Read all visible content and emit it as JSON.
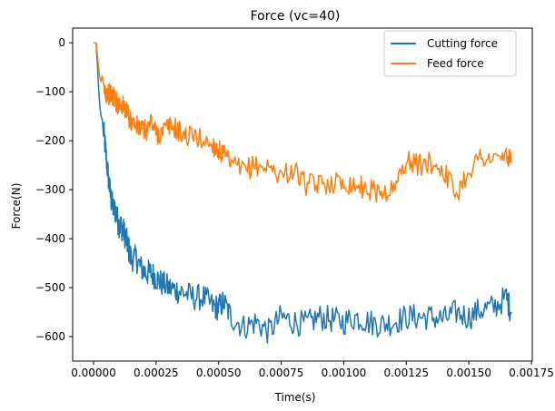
{
  "chart_data": {
    "type": "line",
    "title": "Force (vc=40)",
    "xlabel": "Time(s)",
    "ylabel": "Force(N)",
    "xlim": [
      -8.35e-05,
      0.0017535
    ],
    "ylim": [
      -650,
      30
    ],
    "xticks": [
      {
        "value": 0.0,
        "label": "0.00000"
      },
      {
        "value": 0.00025,
        "label": "0.00025"
      },
      {
        "value": 0.0005,
        "label": "0.00050"
      },
      {
        "value": 0.00075,
        "label": "0.00075"
      },
      {
        "value": 0.001,
        "label": "0.00100"
      },
      {
        "value": 0.00125,
        "label": "0.00125"
      },
      {
        "value": 0.0015,
        "label": "0.00150"
      },
      {
        "value": 0.00175,
        "label": "0.00175"
      }
    ],
    "yticks": [
      {
        "value": 0,
        "label": "0"
      },
      {
        "value": -100,
        "label": "−100"
      },
      {
        "value": -200,
        "label": "−200"
      },
      {
        "value": -300,
        "label": "−300"
      },
      {
        "value": -400,
        "label": "−400"
      },
      {
        "value": -500,
        "label": "−500"
      },
      {
        "value": -600,
        "label": "−600"
      }
    ],
    "grid": false,
    "legend_position": "top-right",
    "series": [
      {
        "name": "Cutting force",
        "color": "#1f77b4",
        "x": [
          0.0,
          5e-06,
          1e-05,
          1.5e-05,
          2e-05,
          2.5e-05,
          3e-05,
          4e-05,
          5e-05,
          6e-05,
          7e-05,
          8e-05,
          9e-05,
          0.0001,
          0.00011,
          0.00012,
          0.00013,
          0.00014,
          0.00015,
          0.00017,
          0.00019,
          0.00021,
          0.00023,
          0.00025,
          0.00027,
          0.0003,
          0.00033,
          0.00036,
          0.0004,
          0.00044,
          0.00048,
          0.0005,
          0.00052,
          0.00055,
          0.0006,
          0.00065,
          0.0007,
          0.00075,
          0.0008,
          0.00085,
          0.0009,
          0.00095,
          0.001,
          0.00105,
          0.0011,
          0.00115,
          0.0012,
          0.00125,
          0.0013,
          0.00135,
          0.0014,
          0.00145,
          0.0015,
          0.00155,
          0.0016,
          0.00165,
          0.00167
        ],
        "y": [
          0,
          0,
          0,
          -40,
          -90,
          -130,
          -150,
          -180,
          -230,
          -280,
          -320,
          -340,
          -345,
          -370,
          -375,
          -385,
          -400,
          -420,
          -440,
          -440,
          -460,
          -470,
          -470,
          -480,
          -490,
          -500,
          -505,
          -510,
          -520,
          -520,
          -540,
          -540,
          -530,
          -560,
          -580,
          -570,
          -590,
          -560,
          -570,
          -575,
          -560,
          -565,
          -570,
          -560,
          -570,
          -575,
          -570,
          -560,
          -560,
          -560,
          -565,
          -550,
          -560,
          -545,
          -540,
          -520,
          -550
        ]
      },
      {
        "name": "Feed force",
        "color": "#ff7f0e",
        "x": [
          0.0,
          5e-06,
          1e-05,
          1.5e-05,
          2e-05,
          2.5e-05,
          3e-05,
          4e-05,
          5e-05,
          6e-05,
          7e-05,
          8e-05,
          9e-05,
          0.0001,
          0.00011,
          0.00012,
          0.00013,
          0.00014,
          0.00015,
          0.00017,
          0.00019,
          0.00021,
          0.00023,
          0.00025,
          0.00027,
          0.0003,
          0.00033,
          0.00036,
          0.0004,
          0.00044,
          0.00048,
          0.0005,
          0.00052,
          0.00055,
          0.0006,
          0.00065,
          0.0007,
          0.00075,
          0.0008,
          0.00085,
          0.0009,
          0.00095,
          0.001,
          0.00105,
          0.0011,
          0.00115,
          0.0012,
          0.00125,
          0.0013,
          0.00135,
          0.0014,
          0.00145,
          0.0015,
          0.00155,
          0.0016,
          0.00165,
          0.00167
        ],
        "y": [
          0,
          0,
          0,
          -20,
          -50,
          -70,
          -80,
          -95,
          -100,
          -105,
          -105,
          -110,
          -120,
          -125,
          -125,
          -130,
          -140,
          -150,
          -160,
          -170,
          -175,
          -180,
          -160,
          -185,
          -185,
          -170,
          -175,
          -190,
          -190,
          -200,
          -210,
          -220,
          -230,
          -250,
          -260,
          -250,
          -255,
          -270,
          -260,
          -290,
          -290,
          -285,
          -285,
          -290,
          -300,
          -305,
          -300,
          -240,
          -250,
          -245,
          -260,
          -310,
          -260,
          -230,
          -240,
          -230,
          -245
        ]
      }
    ]
  }
}
